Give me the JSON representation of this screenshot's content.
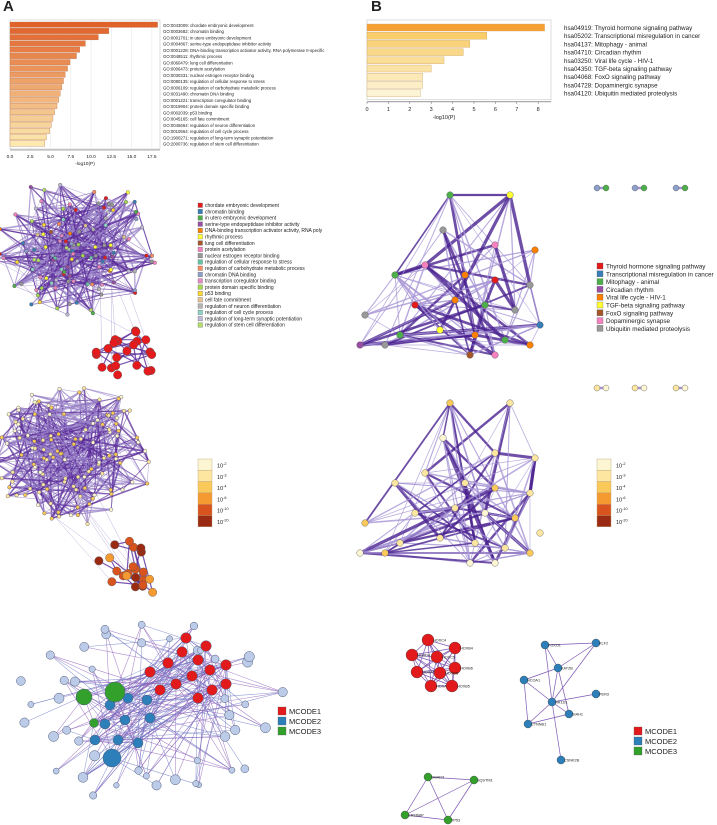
{
  "panels": [
    {
      "letter": "A"
    },
    {
      "letter": "B"
    }
  ],
  "chart_data": [
    {
      "type": "bar",
      "orientation": "horizontal",
      "xlabel": "-log10(P)",
      "xlim": [
        0,
        18.5
      ],
      "xticks": [
        "0.0",
        "2.5",
        "5.0",
        "7.5",
        "10.0",
        "12.5",
        "15.0",
        "17.5"
      ],
      "categories": [
        "GO:0043009: chordate embryonic development",
        "GO:0003682: chromatin binding",
        "GO:0001701: in utero embryonic development",
        "GO:0004867: serine-type endopeptidase inhibitor activity",
        "GO:0001228: DNA-binding transcription activator activity, RNA polymerase II-specific",
        "GO:0048511: rhythmic process",
        "GO:0060479: lung cell differentiation",
        "GO:0006473: protein acetylation",
        "GO:0030331: nuclear estrogen receptor binding",
        "GO:0080135: regulation of cellular response to stress",
        "GO:0006109: regulation of carbohydrate metabolic process",
        "GO:0031490: chromatin DNA binding",
        "GO:0001221: transcription coregulator binding",
        "GO:0019904: protein domain specific binding",
        "GO:0002039: p53 binding",
        "GO:0045165: cell fate commitment",
        "GO:0045664: regulation of neuron differentiation",
        "GO:0010564: regulation of cell cycle process",
        "GO:1900271: regulation of long-term synaptic potentiation",
        "GO:2000736: regulation of stem cell differentiation"
      ],
      "values": [
        18.2,
        12.2,
        10.9,
        9.3,
        8.6,
        8.2,
        7.4,
        7.1,
        6.8,
        6.6,
        6.4,
        6.2,
        6.0,
        5.8,
        5.5,
        5.3,
        5.1,
        4.9,
        4.5,
        4.3
      ]
    },
    {
      "type": "bar",
      "orientation": "horizontal",
      "xlabel": "-log10(P)",
      "xlim": [
        0,
        8.6
      ],
      "xticks": [
        "0",
        "1",
        "2",
        "3",
        "4",
        "5",
        "6",
        "7",
        "8"
      ],
      "categories": [
        "hsa04919: Thyroid hormone signaling pathway",
        "hsa05202: Transcriptional misregulation in cancer",
        "hsa04137: Mitophagy - animal",
        "hsa04710: Circadian rhythm",
        "hsa03250: Viral life cycle - HIV-1",
        "hsa04350: TGF-beta signaling pathway",
        "hsa04068: FoxO signaling pathway",
        "hsa04728: Dopaminergic synapse",
        "hsa04120: Ubiquitin mediated proteolysis"
      ],
      "values": [
        8.3,
        5.6,
        4.8,
        4.5,
        3.6,
        3.0,
        2.6,
        2.6,
        2.5
      ]
    }
  ],
  "legends": {
    "a_clusters": [
      {
        "label": "chordate embryonic development",
        "color": "#e41a1c"
      },
      {
        "label": "chromatin binding",
        "color": "#377eb8"
      },
      {
        "label": "in utero embryonic development",
        "color": "#4daf4a"
      },
      {
        "label": "serine-type endopeptidase inhibitor activity",
        "color": "#984ea3"
      },
      {
        "label": "DNA-binding transcription activator activity, RNA poly",
        "color": "#ff7f00"
      },
      {
        "label": "rhythmic process",
        "color": "#ffff33"
      },
      {
        "label": "lung cell differentiation",
        "color": "#a65628"
      },
      {
        "label": "protein acetylation",
        "color": "#f781bf"
      },
      {
        "label": "nuclear estrogen receptor binding",
        "color": "#999999"
      },
      {
        "label": "regulation of cellular response to stress",
        "color": "#66c2a5"
      },
      {
        "label": "regulation of carbohydrate metabolic process",
        "color": "#fc8d62"
      },
      {
        "label": "chromatin DNA binding",
        "color": "#8da0cb"
      },
      {
        "label": "transcription coregulator binding",
        "color": "#e78ac3"
      },
      {
        "label": "protein domain specific binding",
        "color": "#a6d854"
      },
      {
        "label": "p53 binding",
        "color": "#ffd92f"
      },
      {
        "label": "cell fate commitment",
        "color": "#e5c494"
      },
      {
        "label": "regulation of neuron differentiation",
        "color": "#b3b3b3"
      },
      {
        "label": "regulation of cell cycle process",
        "color": "#8dd3c7"
      },
      {
        "label": "regulation of long-term synaptic potentiation",
        "color": "#bebada"
      },
      {
        "label": "regulation of stem cell differentiation",
        "color": "#b3de69"
      }
    ],
    "b_clusters": [
      {
        "label": "Thyroid hormone signaling pathway",
        "color": "#e41a1c"
      },
      {
        "label": "Transcriptional misregulation in cancer",
        "color": "#377eb8"
      },
      {
        "label": "Mitophagy - animal",
        "color": "#4daf4a"
      },
      {
        "label": "Circadian rhythm",
        "color": "#984ea3"
      },
      {
        "label": "Viral life cycle - HIV-1",
        "color": "#ff7f00"
      },
      {
        "label": "TGF-beta signaling pathway",
        "color": "#ffff33"
      },
      {
        "label": "FoxO signaling pathway",
        "color": "#a65628"
      },
      {
        "label": "Dopaminergic synapse",
        "color": "#f781bf"
      },
      {
        "label": "Ubiquitin mediated proteolysis",
        "color": "#999999"
      }
    ],
    "pvalue_scale": [
      {
        "label": "10",
        "exp": "-2",
        "color": "#fdf6d3"
      },
      {
        "label": "10",
        "exp": "-3",
        "color": "#fde7a0"
      },
      {
        "label": "10",
        "exp": "-4",
        "color": "#fbc85a"
      },
      {
        "label": "10",
        "exp": "-6",
        "color": "#f59a31"
      },
      {
        "label": "10",
        "exp": "-10",
        "color": "#d9531e"
      },
      {
        "label": "10",
        "exp": "-20",
        "color": "#9a2a12"
      }
    ],
    "mcode": [
      {
        "label": "MCODE1",
        "color": "#e31a1c"
      },
      {
        "label": "MCODE2",
        "color": "#2c7fb8"
      },
      {
        "label": "MCODE3",
        "color": "#33a02c"
      }
    ]
  },
  "genes": {
    "mcode1": [
      "HOXC4",
      "HOXB4",
      "HOXB6",
      "HOXC5",
      "HOXD4",
      "HOXA5",
      "HOXA4",
      "HOXB5",
      "HOXD5"
    ],
    "mcode2": [
      "FOXO1",
      "KLF2",
      "KAT2B",
      "PER3",
      "NCOA1",
      "NR1D1",
      "CTNNB1",
      "SIAH1",
      "CSNK2B"
    ],
    "mcode3": [
      "SQSTM1",
      "SMAD3",
      "CREBBP",
      "TP53"
    ]
  }
}
